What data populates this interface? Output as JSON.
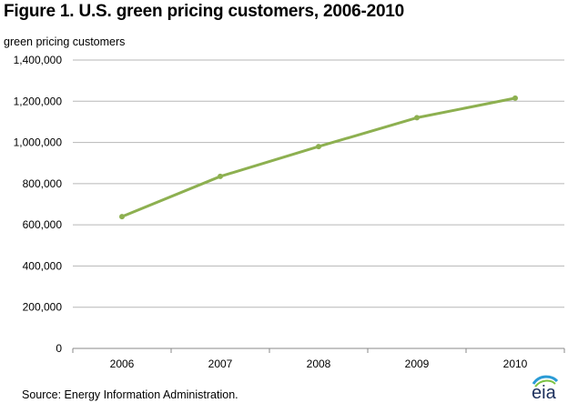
{
  "title": "Figure 1. U.S. green pricing customers, 2006-2010",
  "source": "Source:  Energy Information Administration.",
  "logo_text": "eia",
  "colors": {
    "line": "#8db050",
    "grid": "#b7b7b7",
    "axis": "#888888",
    "logo_arc": "#2a9bd6"
  },
  "chart_data": {
    "type": "line",
    "ylabel": "green pricing customers",
    "xlabel": "",
    "categories": [
      "2006",
      "2007",
      "2008",
      "2009",
      "2010"
    ],
    "y_ticks": [
      "0",
      "200,000",
      "400,000",
      "600,000",
      "800,000",
      "1,000,000",
      "1,200,000",
      "1,400,000"
    ],
    "ylim": [
      0,
      1400000
    ],
    "grid": true,
    "legend": "none",
    "series": [
      {
        "values": [
          640000,
          835000,
          980000,
          1120000,
          1215000
        ]
      }
    ]
  }
}
